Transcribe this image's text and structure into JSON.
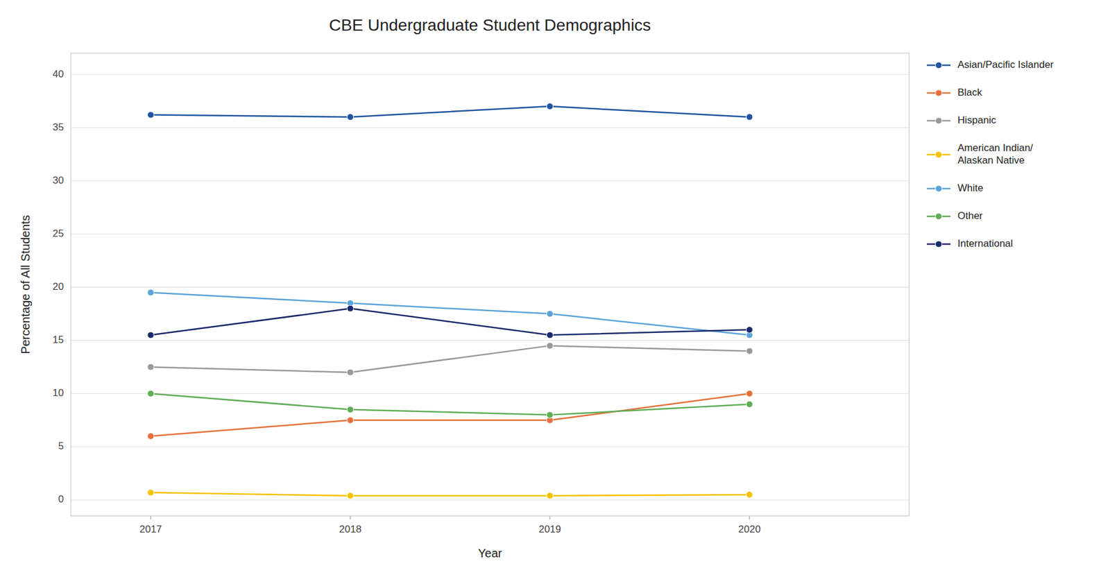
{
  "chart_data": {
    "type": "line",
    "title": "CBE Undergraduate Student Demographics",
    "xlabel": "Year",
    "ylabel": "Percentage of All Students",
    "x": [
      2017,
      2018,
      2019,
      2020
    ],
    "series": [
      {
        "name": "Asian/Pacific Islander",
        "color": "#2155A0",
        "marker": "circle",
        "values": [
          36.2,
          36.0,
          37.0,
          36.0
        ]
      },
      {
        "name": "Black",
        "color": "#E8703A",
        "marker": "circle",
        "values": [
          6.0,
          7.5,
          7.5,
          10.0
        ]
      },
      {
        "name": "Hispanic",
        "color": "#999999",
        "marker": "circle",
        "values": [
          12.5,
          12.0,
          14.5,
          14.0
        ]
      },
      {
        "name": "American Indian/\nAlaskan Native",
        "color": "#F5C200",
        "marker": "circle",
        "values": [
          0.7,
          0.4,
          0.4,
          0.5
        ]
      },
      {
        "name": "White",
        "color": "#5BA3D9",
        "marker": "circle",
        "values": [
          19.5,
          18.5,
          17.5,
          15.5
        ]
      },
      {
        "name": "Other",
        "color": "#5FAD56",
        "marker": "circle",
        "values": [
          10.0,
          8.5,
          8.0,
          9.0
        ]
      },
      {
        "name": "International",
        "color": "#1A2B6B",
        "marker": "circle",
        "values": [
          15.5,
          18.0,
          15.5,
          16.0
        ]
      }
    ],
    "xlim": [
      2016.6,
      2020.8
    ],
    "xticks": [
      2017,
      2018,
      2019,
      2020
    ],
    "ylim": [
      -1.5,
      42
    ],
    "yticks": [
      0,
      5,
      10,
      15,
      20,
      25,
      30,
      35,
      40
    ],
    "grid": true,
    "legend": "right"
  }
}
